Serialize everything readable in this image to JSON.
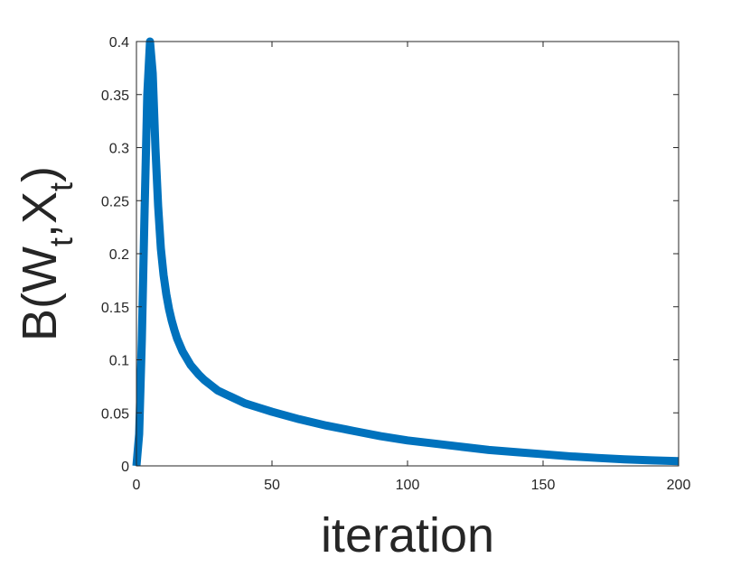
{
  "chart_data": {
    "type": "line",
    "title": "",
    "xlabel": "iteration",
    "ylabel": {
      "prefix": "B(W",
      "sub1": "t",
      "mid": ",X",
      "sub2": "t",
      "suffix": ")"
    },
    "xlim": [
      0,
      200
    ],
    "ylim": [
      0,
      0.4
    ],
    "xticks": [
      0,
      50,
      100,
      150,
      200
    ],
    "xtick_labels": [
      "0",
      "50",
      "100",
      "150",
      "200"
    ],
    "yticks": [
      0,
      0.05,
      0.1,
      0.15,
      0.2,
      0.25,
      0.3,
      0.35,
      0.4
    ],
    "ytick_labels": [
      "0",
      "0.05",
      "0.1",
      "0.15",
      "0.2",
      "0.25",
      "0.3",
      "0.35",
      "0.4"
    ],
    "grid": false,
    "legend": "none",
    "series": [
      {
        "color": "#0072BD",
        "x": [
          0,
          1,
          2,
          3,
          4,
          5,
          6,
          7,
          8,
          9,
          10,
          11,
          12,
          13,
          14,
          15,
          17,
          20,
          23,
          25,
          28,
          30,
          35,
          40,
          45,
          50,
          60,
          70,
          80,
          90,
          100,
          110,
          120,
          130,
          140,
          150,
          160,
          170,
          180,
          190,
          200
        ],
        "y": [
          0.0,
          0.03,
          0.12,
          0.24,
          0.35,
          0.4,
          0.37,
          0.3,
          0.245,
          0.205,
          0.18,
          0.162,
          0.148,
          0.137,
          0.128,
          0.12,
          0.108,
          0.095,
          0.086,
          0.081,
          0.075,
          0.071,
          0.065,
          0.059,
          0.055,
          0.051,
          0.044,
          0.038,
          0.033,
          0.028,
          0.024,
          0.021,
          0.018,
          0.015,
          0.013,
          0.011,
          0.009,
          0.0075,
          0.0062,
          0.0052,
          0.0045
        ]
      }
    ]
  }
}
